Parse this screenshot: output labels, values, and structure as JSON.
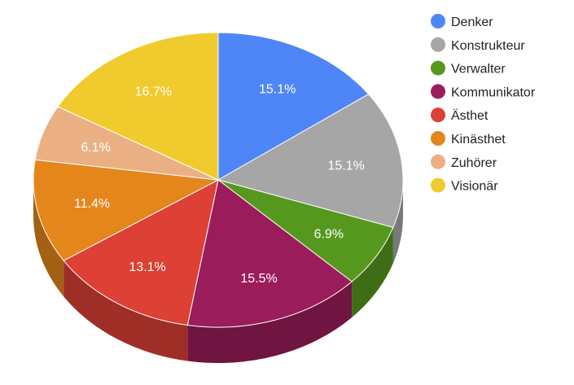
{
  "chart_data": {
    "type": "pie",
    "title": "",
    "three_d": true,
    "legend_position": "right",
    "slices": [
      {
        "name": "Denker",
        "value": 15.1,
        "label": "15.1%",
        "color": "#4f86f7"
      },
      {
        "name": "Konstrukteur",
        "value": 15.1,
        "label": "15.1%",
        "color": "#a6a6a6"
      },
      {
        "name": "Verwalter",
        "value": 6.9,
        "label": "6.9%",
        "color": "#56981e"
      },
      {
        "name": "Kommunikator",
        "value": 15.5,
        "label": "15.5%",
        "color": "#9b1c5a"
      },
      {
        "name": "Ästhet",
        "value": 13.1,
        "label": "13.1%",
        "color": "#dd4035"
      },
      {
        "name": "Kinästhet",
        "value": 11.4,
        "label": "11.4%",
        "color": "#e4861b"
      },
      {
        "name": "Zuhörer",
        "value": 6.1,
        "label": "6.1%",
        "color": "#eab084"
      },
      {
        "name": "Visionär",
        "value": 16.7,
        "label": "16.7%",
        "color": "#f1cb2e"
      }
    ]
  }
}
